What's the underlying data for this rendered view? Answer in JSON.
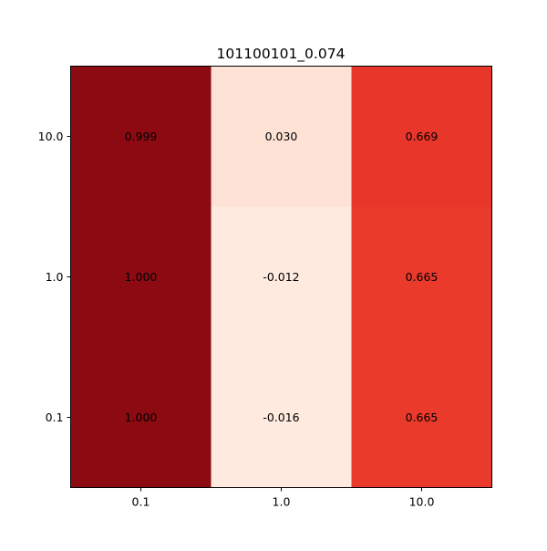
{
  "chart_data": {
    "type": "heatmap",
    "title": "101100101_0.074",
    "xlabel": "",
    "ylabel": "",
    "x_categories": [
      "0.1",
      "1.0",
      "10.0"
    ],
    "y_categories": [
      "10.0",
      "1.0",
      "0.1"
    ],
    "values": [
      [
        0.999,
        0.03,
        0.669
      ],
      [
        1.0,
        -0.012,
        0.665
      ],
      [
        1.0,
        -0.016,
        0.665
      ]
    ],
    "value_labels": [
      [
        "0.999",
        "0.030",
        "0.669"
      ],
      [
        "1.000",
        "-0.012",
        "0.665"
      ],
      [
        "1.000",
        "-0.016",
        "0.665"
      ]
    ],
    "colormap": "Reds",
    "cell_colors": [
      [
        "#8c0b13",
        "#fee2d5",
        "#e8362b"
      ],
      [
        "#8c0b13",
        "#feeade",
        "#e93a2c"
      ],
      [
        "#8c0b13",
        "#feeade",
        "#e93a2c"
      ]
    ],
    "grid": false,
    "legend": "none"
  }
}
